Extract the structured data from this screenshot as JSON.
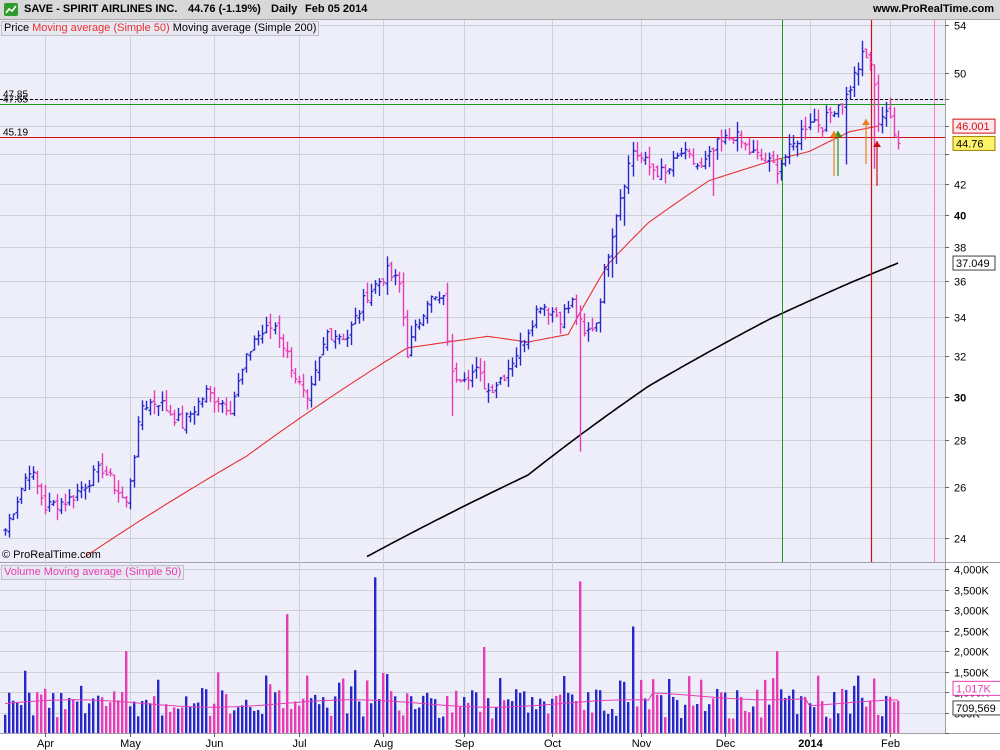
{
  "header": {
    "title": "SAVE - SPIRIT AIRLINES INC.",
    "quote": "44.76 (-1.19%)",
    "period": "Daily",
    "date": "Feb 05 2014",
    "site": "www.ProRealTime.com"
  },
  "price_legend": [
    "Price",
    "Moving average (Simple 50)",
    "Moving average (Simple 200)"
  ],
  "volume_legend": [
    "Volume",
    "Moving average (Simple 50)"
  ],
  "copyright": "© ProRealTime.com",
  "colors": {
    "up_bar": "#2828c8",
    "down_bar": "#e83cb4",
    "ma50": "#e83030",
    "ma200": "#000000",
    "grid": "#d0d0d8",
    "panel_bg": "#eeeefa",
    "green_line": "#1a9a1a",
    "red_line": "#d01010",
    "pink_line": "#ff80b0",
    "support_line": "#d01010",
    "resistance_dashed": "#000000"
  },
  "chart_data": [
    {
      "type": "ohlc",
      "title": "SAVE - SPIRIT AIRLINES INC.",
      "x_months": [
        "Apr",
        "May",
        "Jun",
        "Jul",
        "Aug",
        "Sep",
        "Oct",
        "Nov",
        "Dec",
        "2014",
        "Feb"
      ],
      "y_ticks": [
        24,
        26,
        28,
        30,
        32,
        34,
        36,
        38,
        40,
        42,
        44,
        46,
        48,
        50,
        54
      ],
      "y_tick_labels": [
        "24",
        "26",
        "28",
        "30",
        "32",
        "34",
        "36",
        "38",
        "40",
        "42",
        "",
        "",
        "",
        "50",
        "54"
      ],
      "ylim": [
        23.1,
        54.4
      ],
      "y_scale": "log",
      "horizontal_levels": [
        {
          "label": "47.85",
          "value": 47.85,
          "style": "dashed"
        },
        {
          "label": "47.65",
          "value": 47.65,
          "style": "solid",
          "color": "green"
        },
        {
          "label": "45.19",
          "value": 45.19,
          "style": "solid",
          "color": "red"
        }
      ],
      "right_labels": [
        {
          "label": "46.001",
          "value": 46.0
        },
        {
          "label": "44.76",
          "value": 44.76
        },
        {
          "label": "37.049",
          "value": 37.05
        }
      ],
      "anchors": [
        [
          0,
          24.3
        ],
        [
          6,
          26.8
        ],
        [
          10,
          25.2
        ],
        [
          16,
          25.5
        ],
        [
          24,
          26.8
        ],
        [
          30,
          25.3
        ],
        [
          34,
          29.6
        ],
        [
          38,
          29.8
        ],
        [
          44,
          28.7
        ],
        [
          50,
          30.2
        ],
        [
          56,
          29.5
        ],
        [
          62,
          32.9
        ],
        [
          67,
          33.6
        ],
        [
          72,
          31.0
        ],
        [
          75,
          29.6
        ],
        [
          80,
          33.2
        ],
        [
          85,
          33.0
        ],
        [
          90,
          35.3
        ],
        [
          95,
          36.5
        ],
        [
          98,
          35.8
        ],
        [
          100,
          32.2
        ],
        [
          105,
          35.0
        ],
        [
          109,
          34.9
        ],
        [
          111,
          31.0
        ],
        [
          117,
          31.2
        ],
        [
          120,
          30.3
        ],
        [
          124,
          31.1
        ],
        [
          128,
          32.5
        ],
        [
          133,
          34.8
        ],
        [
          138,
          34.0
        ],
        [
          141,
          34.8
        ],
        [
          144,
          33.0
        ],
        [
          147,
          33.8
        ],
        [
          149,
          36.5
        ],
        [
          152,
          40.2
        ],
        [
          156,
          44.3
        ],
        [
          160,
          43.1
        ],
        [
          164,
          42.6
        ],
        [
          168,
          44.1
        ],
        [
          173,
          43.0
        ],
        [
          177,
          44.6
        ],
        [
          181,
          45.4
        ],
        [
          185,
          44.2
        ],
        [
          189,
          43.5
        ],
        [
          192,
          43.1
        ],
        [
          196,
          44.6
        ],
        [
          200,
          46.6
        ],
        [
          203,
          46.1
        ],
        [
          206,
          47.4
        ],
        [
          209,
          48.2
        ],
        [
          211,
          49.8
        ],
        [
          213,
          51.3
        ],
        [
          215,
          51.0
        ],
        [
          217,
          46.5
        ],
        [
          219,
          47.2
        ],
        [
          221,
          45.3
        ],
        [
          222,
          44.76
        ]
      ],
      "series": [
        {
          "name": "Moving average (Simple 50)",
          "anchors": [
            [
              20,
              23.3
            ],
            [
              60,
              27.3
            ],
            [
              100,
              32.4
            ],
            [
              120,
              33.0
            ],
            [
              130,
              32.7
            ],
            [
              140,
              33.1
            ],
            [
              150,
              37.0
            ],
            [
              160,
              39.5
            ],
            [
              175,
              42.2
            ],
            [
              190,
              43.5
            ],
            [
              200,
              44.2
            ],
            [
              210,
              45.6
            ],
            [
              217,
              46.0
            ]
          ]
        },
        {
          "name": "Moving average (Simple 200)",
          "anchors": [
            [
              90,
              23.3
            ],
            [
              130,
              26.5
            ],
            [
              160,
              30.5
            ],
            [
              190,
              33.9
            ],
            [
              210,
              35.9
            ],
            [
              222,
              37.05
            ]
          ]
        }
      ]
    },
    {
      "type": "bar",
      "title": "Volume",
      "y_ticks": [
        0,
        500000,
        1000000,
        1500000,
        2000000,
        2500000,
        3000000,
        3500000,
        4000000
      ],
      "y_tick_labels": [
        "",
        "500K",
        "1,000K",
        "1,500K",
        "2,000K",
        "2,500K",
        "3,000K",
        "3,500K",
        "4,000K"
      ],
      "ylim": [
        0,
        4150000
      ],
      "right_labels": [
        {
          "label": "1,017K",
          "value": 1017000
        },
        {
          "label": "709,569",
          "value": 709569
        }
      ],
      "series": [
        {
          "name": "Moving average (Simple 50)",
          "value_approx": 720000
        }
      ],
      "spikes": [
        [
          30,
          2000000
        ],
        [
          70,
          2900000
        ],
        [
          92,
          3800000
        ],
        [
          143,
          3700000
        ],
        [
          156,
          2600000
        ],
        [
          119,
          2100000
        ],
        [
          38,
          1300000
        ],
        [
          192,
          2000000
        ],
        [
          202,
          1400000
        ],
        [
          212,
          1400000
        ]
      ]
    }
  ]
}
